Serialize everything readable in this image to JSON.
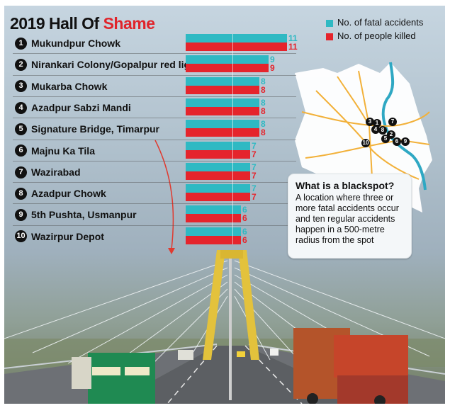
{
  "title_main": "2019 Hall Of ",
  "title_highlight": "Shame",
  "colors": {
    "fatal": "#2fb9c3",
    "killed": "#e5242c",
    "title_highlight": "#e0242b"
  },
  "legend": [
    {
      "label": "No. of fatal accidents",
      "color": "#2fb9c3"
    },
    {
      "label": "No. of people killed",
      "color": "#e5242c"
    }
  ],
  "chart_data": {
    "type": "bar",
    "orientation": "horizontal",
    "categories": [
      "Mukundpur Chowk",
      "Nirankari Colony/Gopalpur red light",
      "Mukarba Chowk",
      "Azadpur Sabzi Mandi",
      "Signature Bridge, Timarpur",
      "Majnu Ka Tila",
      "Wazirabad",
      "Azadpur Chowk",
      "5th Pushta, Usmanpur",
      "Wazirpur Depot"
    ],
    "ranks": [
      "1",
      "2",
      "3",
      "4",
      "5",
      "6",
      "7",
      "8",
      "9",
      "10"
    ],
    "series": [
      {
        "name": "No. of fatal accidents",
        "values": [
          11,
          9,
          8,
          8,
          8,
          7,
          7,
          7,
          6,
          6
        ]
      },
      {
        "name": "No. of people killed",
        "values": [
          11,
          9,
          8,
          8,
          8,
          7,
          7,
          7,
          6,
          6
        ]
      }
    ],
    "xlim": [
      0,
      11
    ]
  },
  "map_markers": [
    "3",
    "1",
    "7",
    "4",
    "8",
    "2",
    "5",
    "6",
    "9",
    "10"
  ],
  "info": {
    "title": "What is a blackspot?",
    "body": "A location where three or more fatal accidents occur and ten regular accidents happen in a 500-metre radius from the spot"
  }
}
